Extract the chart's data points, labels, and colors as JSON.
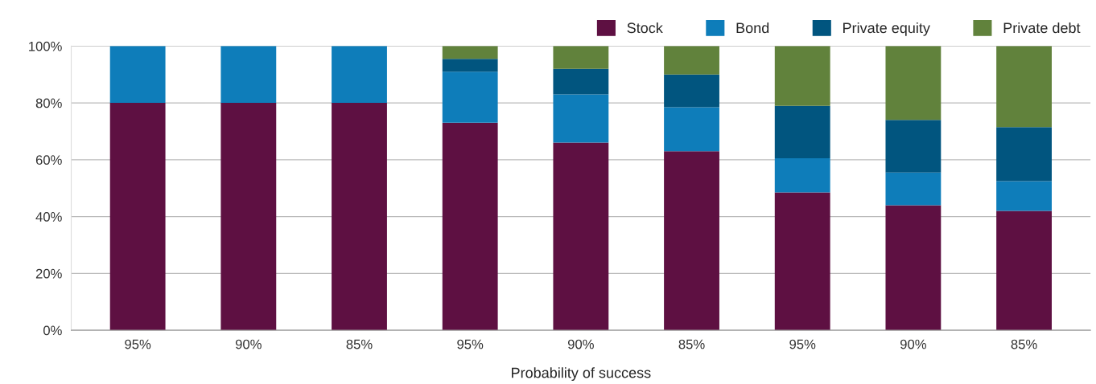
{
  "chart_data": {
    "type": "bar",
    "stacked": true,
    "xlabel": "Probability of success",
    "categories": [
      "95%",
      "90%",
      "85%",
      "95%",
      "90%",
      "85%",
      "95%",
      "90%",
      "85%"
    ],
    "series": [
      {
        "name": "Stock",
        "color": "#5e1042",
        "values": [
          80,
          80,
          80,
          73,
          66,
          63,
          48.5,
          44,
          42
        ]
      },
      {
        "name": "Bond",
        "color": "#0e7dba",
        "values": [
          20,
          20,
          20,
          18,
          17,
          15.5,
          12,
          11.5,
          10.5
        ]
      },
      {
        "name": "Private equity",
        "color": "#01557f",
        "values": [
          0,
          0,
          0,
          4.5,
          9,
          11.5,
          18.5,
          18.5,
          19
        ]
      },
      {
        "name": "Private debt",
        "color": "#61823c",
        "values": [
          0,
          0,
          0,
          4.5,
          8,
          10,
          21,
          26,
          28.5
        ]
      }
    ],
    "ylim": [
      0,
      100
    ],
    "yticks": [
      {
        "value": 0,
        "label": "0%"
      },
      {
        "value": 20,
        "label": "20%"
      },
      {
        "value": 40,
        "label": "40%"
      },
      {
        "value": 60,
        "label": "60%"
      },
      {
        "value": 80,
        "label": "80%"
      },
      {
        "value": 100,
        "label": "100%"
      }
    ],
    "grid": "y",
    "legend": "top right"
  }
}
